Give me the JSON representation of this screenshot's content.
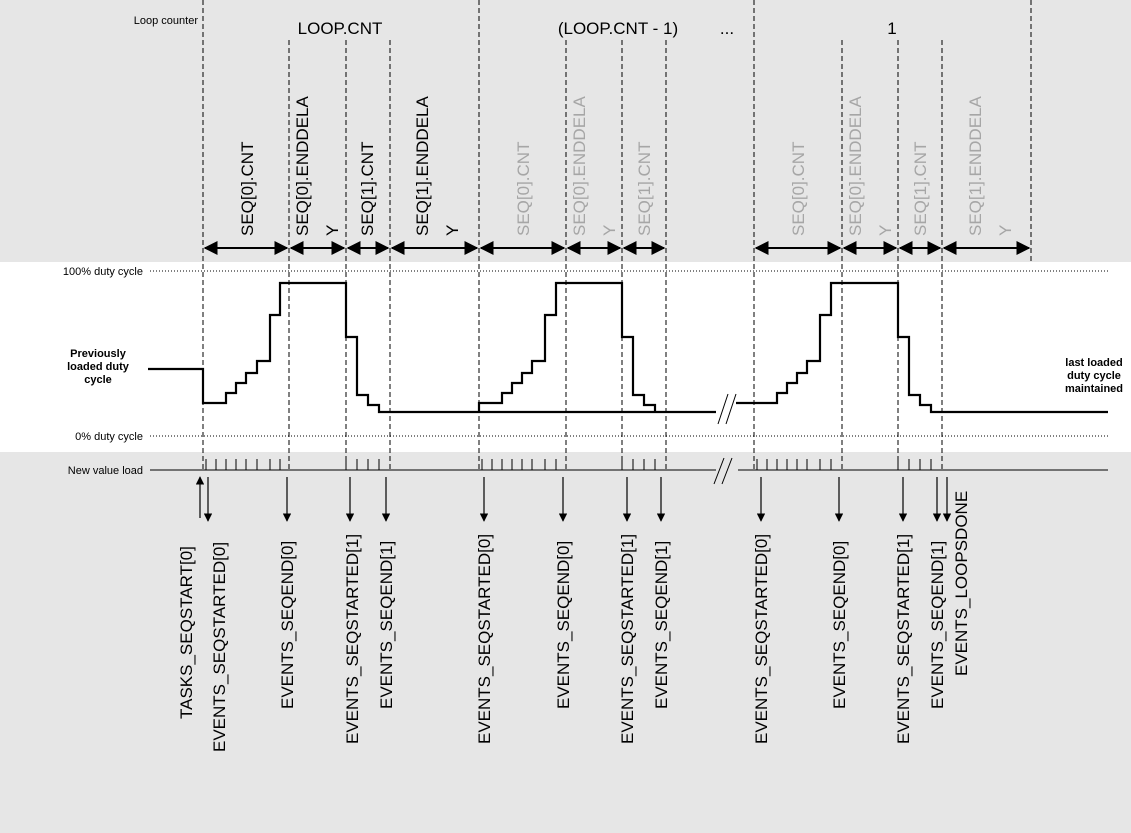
{
  "labels": {
    "loop_counter": "Loop counter",
    "duty_100": "100% duty cycle",
    "duty_0": "0% duty cycle",
    "new_value_load": "New value load",
    "previously_loaded": [
      "Previously",
      "loaded duty",
      "cycle"
    ],
    "last_loaded": [
      "last loaded",
      "duty cycle",
      "maintained"
    ],
    "ellipsis": "..."
  },
  "loops": [
    {
      "label": "LOOP.CNT"
    },
    {
      "label": "(LOOP.CNT - 1)"
    },
    {
      "label": "1"
    }
  ],
  "intervals": [
    {
      "label": "SEQ[0].CNT",
      "faded": false
    },
    {
      "label": "SEQ[0].ENDDELA",
      "label2": "Y",
      "faded": false
    },
    {
      "label": "SEQ[1].CNT",
      "faded": false
    },
    {
      "label": "SEQ[1].ENDDELA",
      "label2": "Y",
      "faded": false
    },
    {
      "label": "SEQ[0].CNT",
      "faded": true
    },
    {
      "label": "SEQ[0].ENDDELA",
      "label2": "Y",
      "faded": true
    },
    {
      "label": "SEQ[1].CNT",
      "faded": true
    },
    {
      "label": "SEQ[0].CNT",
      "faded": true
    },
    {
      "label": "SEQ[0].ENDDELA",
      "label2": "Y",
      "faded": true
    },
    {
      "label": "SEQ[1].CNT",
      "faded": true
    },
    {
      "label": "SEQ[1].ENDDELA",
      "label2": "Y",
      "faded": true
    }
  ],
  "events": [
    {
      "label": "TASKS_SEQSTART[0]",
      "direction": "up"
    },
    {
      "label": "EVENTS_SEQSTARTED[0]",
      "direction": "down"
    },
    {
      "label": "EVENTS_SEQEND[0]",
      "direction": "down"
    },
    {
      "label": "EVENTS_SEQSTARTED[1]",
      "direction": "down"
    },
    {
      "label": "EVENTS_SEQEND[1]",
      "direction": "down"
    },
    {
      "label": "EVENTS_SEQSTARTED[0]",
      "direction": "down"
    },
    {
      "label": "EVENTS_SEQEND[0]",
      "direction": "down"
    },
    {
      "label": "EVENTS_SEQSTARTED[1]",
      "direction": "down"
    },
    {
      "label": "EVENTS_SEQEND[1]",
      "direction": "down"
    },
    {
      "label": "EVENTS_SEQSTARTED[0]",
      "direction": "down"
    },
    {
      "label": "EVENTS_SEQEND[0]",
      "direction": "down"
    },
    {
      "label": "EVENTS_SEQSTARTED[1]",
      "direction": "down"
    },
    {
      "label": "EVENTS_SEQEND[1]",
      "direction": "down"
    },
    {
      "label": "EVENTS_LOOPSDONE",
      "direction": "down"
    }
  ],
  "colors": {
    "band": "#e6e6e6",
    "faded_text": "#a6a6a6",
    "line": "#000000"
  }
}
